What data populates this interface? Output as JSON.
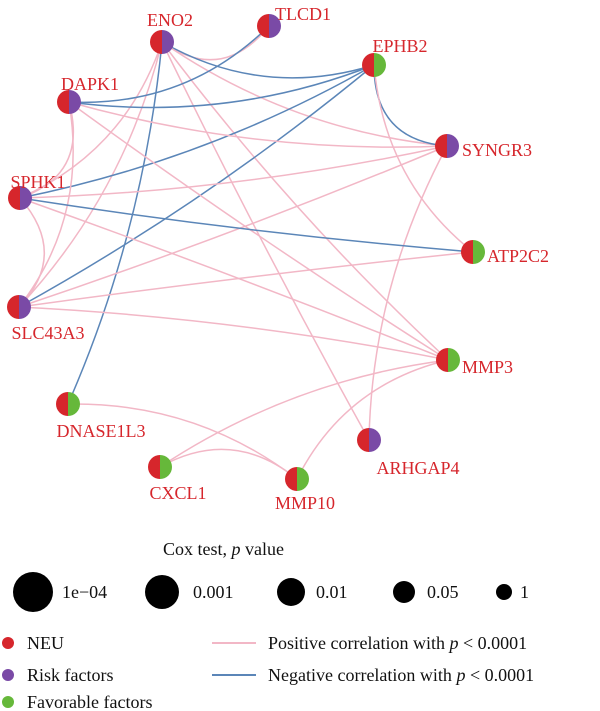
{
  "colors": {
    "neu": "#d6262c",
    "risk": "#7a4aa6",
    "favorable": "#66b83a",
    "positive_edge": "#f2b7c6",
    "negative_edge": "#5b86b8",
    "label": "#d6262c"
  },
  "nodes": [
    {
      "id": "ENO2",
      "label": "ENO2",
      "type": "risk"
    },
    {
      "id": "TLCD1",
      "label": "TLCD1",
      "type": "risk"
    },
    {
      "id": "EPHB2",
      "label": "EPHB2",
      "type": "favorable"
    },
    {
      "id": "DAPK1",
      "label": "DAPK1",
      "type": "risk"
    },
    {
      "id": "SYNGR3",
      "label": "SYNGR3",
      "type": "risk"
    },
    {
      "id": "SPHK1",
      "label": "SPHK1",
      "type": "risk"
    },
    {
      "id": "ATP2C2",
      "label": "ATP2C2",
      "type": "favorable"
    },
    {
      "id": "SLC43A3",
      "label": "SLC43A3",
      "type": "risk"
    },
    {
      "id": "MMP3",
      "label": "MMP3",
      "type": "favorable"
    },
    {
      "id": "DNASE1L3",
      "label": "DNASE1L3",
      "type": "favorable"
    },
    {
      "id": "ARHGAP4",
      "label": "ARHGAP4",
      "type": "risk"
    },
    {
      "id": "CXCL1",
      "label": "CXCL1",
      "type": "favorable"
    },
    {
      "id": "MMP10",
      "label": "MMP10",
      "type": "favorable"
    }
  ],
  "edges": [
    {
      "source": "ENO2",
      "target": "TLCD1",
      "sign": "positive"
    },
    {
      "source": "ENO2",
      "target": "EPHB2",
      "sign": "negative"
    },
    {
      "source": "ENO2",
      "target": "SYNGR3",
      "sign": "positive"
    },
    {
      "source": "ENO2",
      "target": "SPHK1",
      "sign": "positive"
    },
    {
      "source": "ENO2",
      "target": "SLC43A3",
      "sign": "positive"
    },
    {
      "source": "ENO2",
      "target": "DNASE1L3",
      "sign": "negative"
    },
    {
      "source": "ENO2",
      "target": "MMP3",
      "sign": "positive"
    },
    {
      "source": "ENO2",
      "target": "ARHGAP4",
      "sign": "positive"
    },
    {
      "source": "TLCD1",
      "target": "DAPK1",
      "sign": "negative"
    },
    {
      "source": "EPHB2",
      "target": "DAPK1",
      "sign": "negative"
    },
    {
      "source": "EPHB2",
      "target": "SYNGR3",
      "sign": "negative"
    },
    {
      "source": "EPHB2",
      "target": "SPHK1",
      "sign": "negative"
    },
    {
      "source": "EPHB2",
      "target": "SLC43A3",
      "sign": "negative"
    },
    {
      "source": "EPHB2",
      "target": "ATP2C2",
      "sign": "positive"
    },
    {
      "source": "DAPK1",
      "target": "SYNGR3",
      "sign": "positive"
    },
    {
      "source": "DAPK1",
      "target": "SPHK1",
      "sign": "positive"
    },
    {
      "source": "DAPK1",
      "target": "SLC43A3",
      "sign": "positive"
    },
    {
      "source": "DAPK1",
      "target": "MMP3",
      "sign": "positive"
    },
    {
      "source": "SYNGR3",
      "target": "SPHK1",
      "sign": "positive"
    },
    {
      "source": "SYNGR3",
      "target": "SLC43A3",
      "sign": "positive"
    },
    {
      "source": "SYNGR3",
      "target": "ARHGAP4",
      "sign": "positive"
    },
    {
      "source": "SPHK1",
      "target": "SLC43A3",
      "sign": "positive"
    },
    {
      "source": "SPHK1",
      "target": "ATP2C2",
      "sign": "negative"
    },
    {
      "source": "SPHK1",
      "target": "MMP3",
      "sign": "positive"
    },
    {
      "source": "ATP2C2",
      "target": "SLC43A3",
      "sign": "positive"
    },
    {
      "source": "SLC43A3",
      "target": "MMP3",
      "sign": "positive"
    },
    {
      "source": "DNASE1L3",
      "target": "MMP10",
      "sign": "positive"
    },
    {
      "source": "CXCL1",
      "target": "MMP10",
      "sign": "positive"
    },
    {
      "source": "CXCL1",
      "target": "MMP3",
      "sign": "positive"
    },
    {
      "source": "MMP10",
      "target": "MMP3",
      "sign": "positive"
    }
  ],
  "legend": {
    "size_title_prefix": "Cox test, ",
    "size_title_italic": "p",
    "size_title_suffix": " value",
    "size_items": [
      {
        "label": "1e−04"
      },
      {
        "label": "0.001"
      },
      {
        "label": "0.01"
      },
      {
        "label": "0.05"
      },
      {
        "label": "1"
      }
    ],
    "node_types": [
      {
        "label": "NEU",
        "type": "neu"
      },
      {
        "label": "Risk factors",
        "type": "risk"
      },
      {
        "label": "Favorable factors",
        "type": "favorable"
      }
    ],
    "edge_types": [
      {
        "prefix": "Positive correlation with ",
        "italic": "p",
        "suffix": " < 0.0001",
        "sign": "positive"
      },
      {
        "prefix": "Negative correlation with ",
        "italic": "p",
        "suffix": " < 0.0001",
        "sign": "negative"
      }
    ]
  }
}
